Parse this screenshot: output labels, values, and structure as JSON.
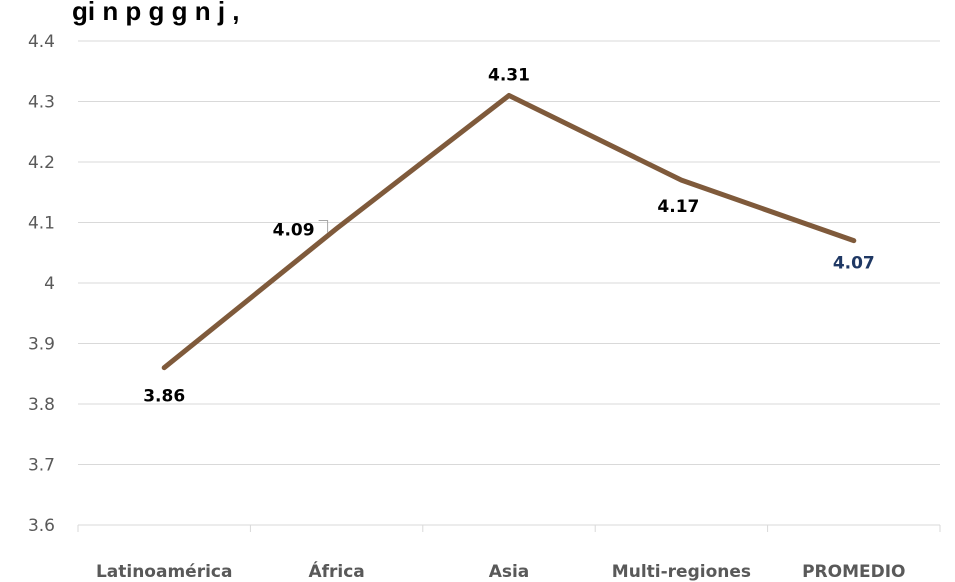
{
  "chart_data": {
    "type": "line",
    "title": "gi n p g g n j ,",
    "categories": [
      "Latinoamérica",
      "África",
      "Asia",
      "Multi-regiones",
      "PROMEDIO"
    ],
    "series": [
      {
        "values": [
          3.86,
          4.09,
          4.31,
          4.17,
          4.07
        ],
        "color": "#7f5a3b"
      }
    ],
    "data_labels": [
      "3.86",
      "4.09",
      "4.31",
      "4.17",
      "4.07"
    ],
    "data_label_colors": [
      "#000000",
      "#000000",
      "#000000",
      "#000000",
      "#1f3864"
    ],
    "yticks": [
      3.6,
      3.7,
      3.8,
      3.9,
      4,
      4.1,
      4.2,
      4.3,
      4.4
    ],
    "ytick_labels": [
      "3.6",
      "3.7",
      "3.8",
      "3.9",
      "4",
      "4.1",
      "4.2",
      "4.3",
      "4.4"
    ],
    "ylim": [
      3.6,
      4.4
    ],
    "grid": true,
    "legend": "none",
    "xlabel": "",
    "ylabel": ""
  }
}
